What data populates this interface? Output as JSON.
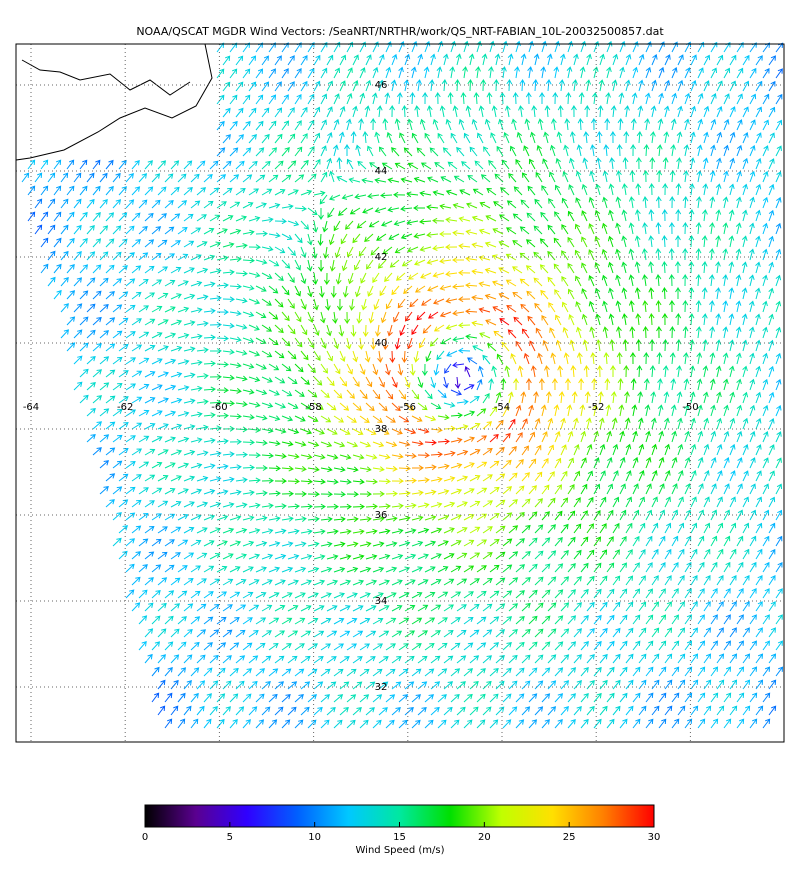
{
  "map": {
    "title": "NOAA/QSCAT MGDR Wind Vectors: /SeaNRT/NRTHR/work/QS_NRT-FABIAN_10L-20032500857.dat",
    "lon_labels": [
      -64,
      -62,
      -60,
      -58,
      -56,
      -54,
      -52,
      -50
    ],
    "lat_labels": [
      46,
      44,
      42,
      40,
      38,
      36,
      34,
      32
    ],
    "colorbar": {
      "label": "Wind Speed (m/s)",
      "range": [
        0,
        30
      ],
      "ticks": [
        0,
        5,
        10,
        15,
        20,
        25,
        30
      ],
      "colors": [
        "#000000",
        "#5a0090",
        "#3000ff",
        "#0060ff",
        "#00c8ff",
        "#00e8a0",
        "#00e000",
        "#c0ff00",
        "#ffe000",
        "#ff8000",
        "#ff0000"
      ]
    }
  }
}
